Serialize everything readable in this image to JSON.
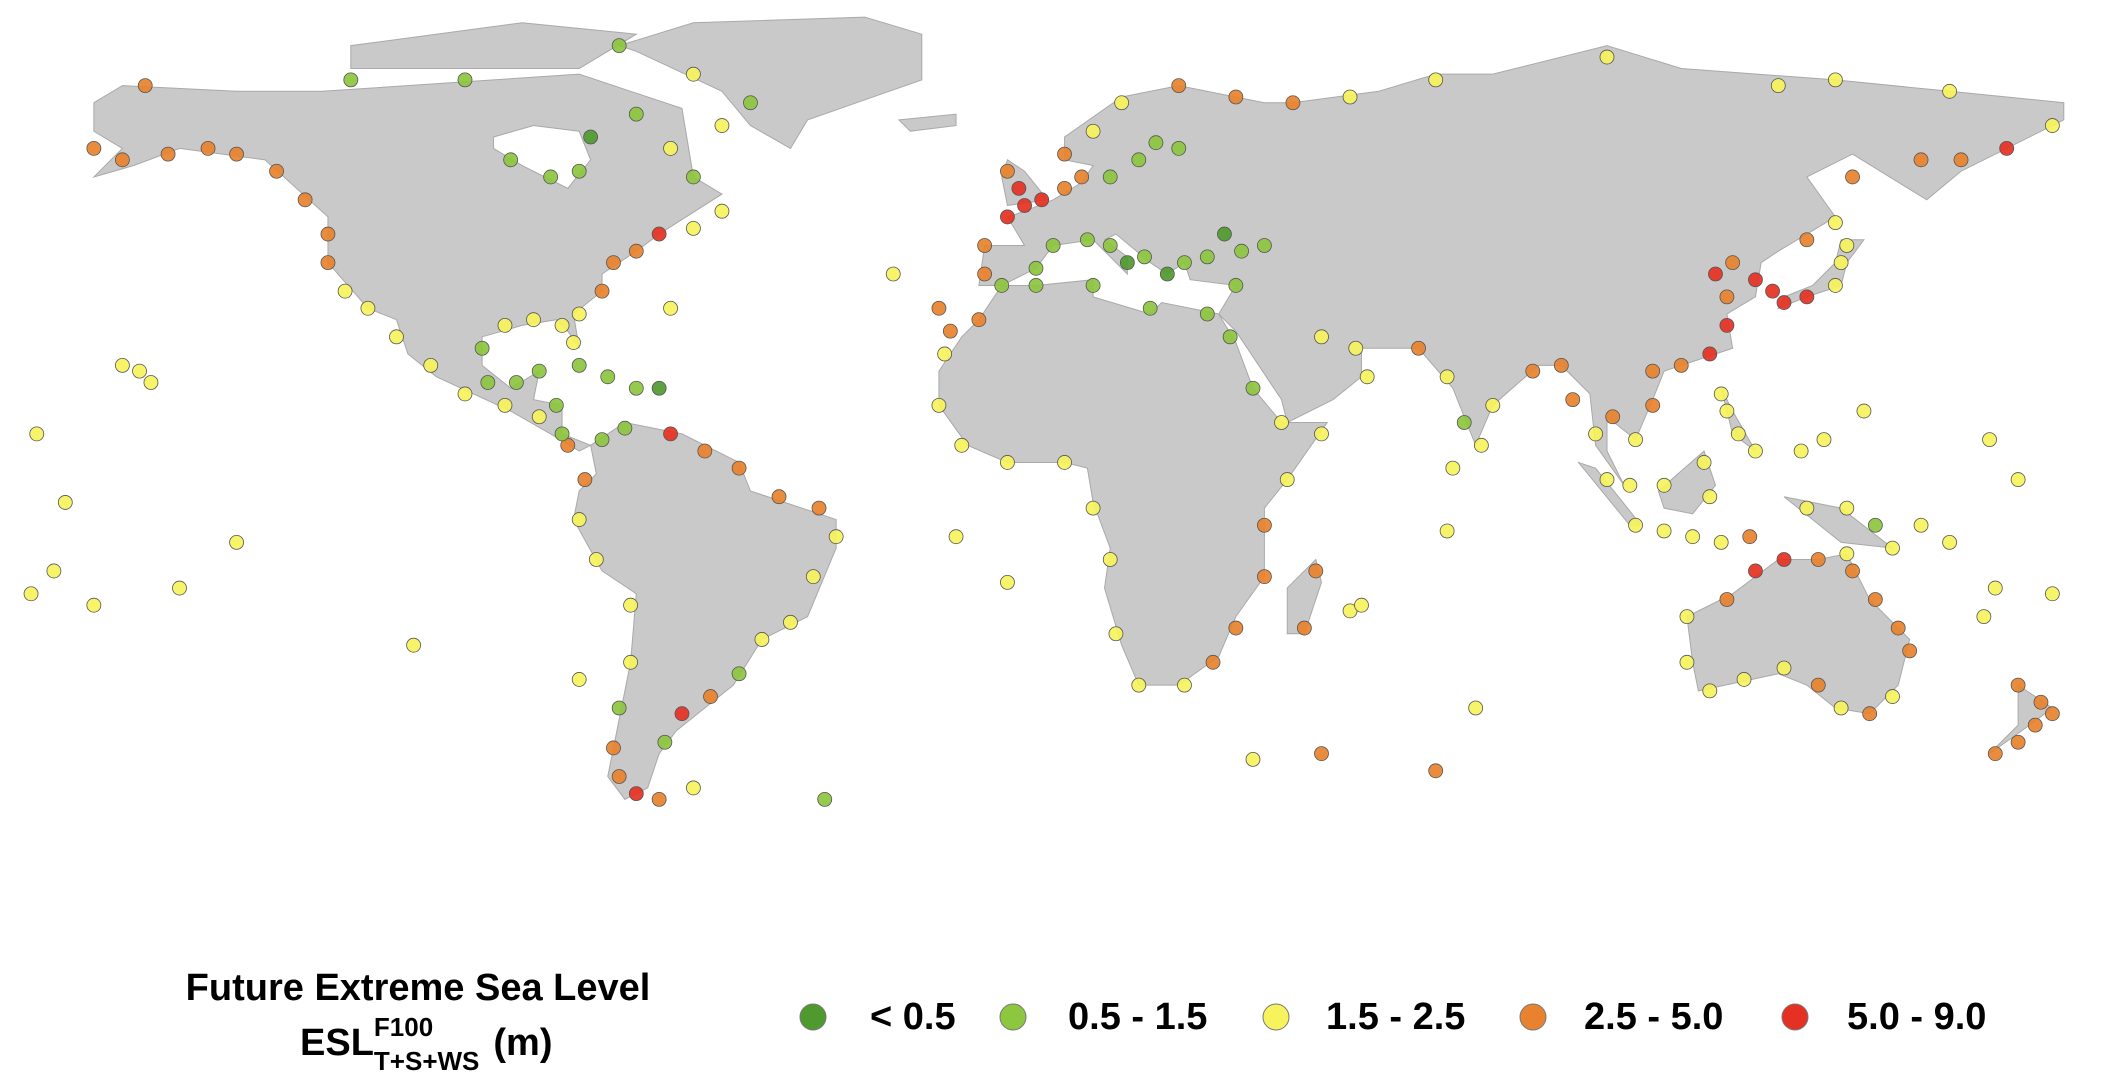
{
  "legend": {
    "title": "Future Extreme Sea Level",
    "esl": {
      "symbol": "ESL",
      "superscript": "F100",
      "subscript": "T+S+WS",
      "unit": "(m)"
    },
    "classes": [
      {
        "label": "< 0.5",
        "color": "#4f9a2e"
      },
      {
        "label": "0.5 - 1.5",
        "color": "#8dc63f"
      },
      {
        "label": "1.5 - 2.5",
        "color": "#f6f35c"
      },
      {
        "label": "2.5 - 5.0",
        "color": "#e8822e"
      },
      {
        "label": "5.0 - 9.0",
        "color": "#e53123"
      }
    ]
  },
  "points": [
    [
      -165,
      60,
      3
    ],
    [
      -160,
      58,
      3
    ],
    [
      -152,
      59,
      3
    ],
    [
      -145,
      60,
      3
    ],
    [
      -140,
      59,
      3
    ],
    [
      -133,
      56,
      3
    ],
    [
      -128,
      51,
      3
    ],
    [
      -124,
      45,
      3
    ],
    [
      -124,
      40,
      3
    ],
    [
      -121,
      35,
      2
    ],
    [
      -117,
      32,
      2
    ],
    [
      -112,
      27,
      2
    ],
    [
      -106,
      22,
      2
    ],
    [
      -100,
      17,
      2
    ],
    [
      -93,
      15,
      2
    ],
    [
      -87,
      13,
      2
    ],
    [
      -82,
      8,
      3
    ],
    [
      -79,
      2,
      3
    ],
    [
      -80,
      -5,
      2
    ],
    [
      -77,
      -12,
      2
    ],
    [
      -71,
      -20,
      2
    ],
    [
      -71,
      -30,
      2
    ],
    [
      -73,
      -38,
      1
    ],
    [
      -74,
      -45,
      3
    ],
    [
      -73,
      -50,
      3
    ],
    [
      -70,
      -53,
      4
    ],
    [
      -66,
      -54,
      3
    ],
    [
      -65,
      -44,
      1
    ],
    [
      -62,
      -39,
      4
    ],
    [
      -57,
      -36,
      3
    ],
    [
      -52,
      -32,
      1
    ],
    [
      -48,
      -26,
      2
    ],
    [
      -43,
      -23,
      2
    ],
    [
      -39,
      -15,
      2
    ],
    [
      -35,
      -8,
      2
    ],
    [
      -38,
      -3,
      3
    ],
    [
      -45,
      -1,
      3
    ],
    [
      -52,
      4,
      3
    ],
    [
      -58,
      7,
      3
    ],
    [
      -64,
      10,
      4
    ],
    [
      -72,
      11,
      1
    ],
    [
      -76,
      9,
      1
    ],
    [
      -83,
      10,
      1
    ],
    [
      -84,
      15,
      1
    ],
    [
      -87,
      21,
      1
    ],
    [
      -91,
      19,
      1
    ],
    [
      -96,
      19,
      1
    ],
    [
      -97,
      25,
      1
    ],
    [
      -93,
      29,
      2
    ],
    [
      -88,
      30,
      2
    ],
    [
      -83,
      29,
      2
    ],
    [
      -81,
      26,
      2
    ],
    [
      -80,
      31,
      2
    ],
    [
      -76,
      35,
      3
    ],
    [
      -74,
      40,
      3
    ],
    [
      -70,
      42,
      3
    ],
    [
      -66,
      45,
      4
    ],
    [
      -60,
      46,
      2
    ],
    [
      -55,
      49,
      2
    ],
    [
      -60,
      55,
      1
    ],
    [
      -64,
      60,
      2
    ],
    [
      -78,
      62,
      0
    ],
    [
      -80,
      56,
      1
    ],
    [
      -85,
      55,
      1
    ],
    [
      -92,
      58,
      1
    ],
    [
      -70,
      66,
      1
    ],
    [
      -55,
      64,
      2
    ],
    [
      -50,
      68,
      1
    ],
    [
      -60,
      73,
      2
    ],
    [
      -73,
      78,
      1
    ],
    [
      -120,
      72,
      1
    ],
    [
      -100,
      72,
      1
    ],
    [
      -156,
      71,
      3
    ],
    [
      -75,
      20,
      1
    ],
    [
      -70,
      18,
      1
    ],
    [
      -66,
      18,
      0
    ],
    [
      -80,
      22,
      1
    ],
    [
      -9,
      38,
      3
    ],
    [
      -9,
      43,
      3
    ],
    [
      -5,
      48,
      4
    ],
    [
      -2,
      50,
      4
    ],
    [
      1,
      51,
      4
    ],
    [
      -3,
      53,
      4
    ],
    [
      -5,
      56,
      3
    ],
    [
      5,
      53,
      3
    ],
    [
      8,
      55,
      3
    ],
    [
      5,
      59,
      3
    ],
    [
      10,
      63,
      2
    ],
    [
      15,
      68,
      2
    ],
    [
      25,
      71,
      3
    ],
    [
      35,
      69,
      3
    ],
    [
      45,
      68,
      3
    ],
    [
      55,
      69,
      2
    ],
    [
      70,
      72,
      2
    ],
    [
      13,
      55,
      1
    ],
    [
      18,
      58,
      1
    ],
    [
      21,
      61,
      1
    ],
    [
      25,
      60,
      1
    ],
    [
      -6,
      36,
      1
    ],
    [
      0,
      39,
      1
    ],
    [
      3,
      43,
      1
    ],
    [
      9,
      44,
      1
    ],
    [
      13,
      43,
      1
    ],
    [
      16,
      40,
      0
    ],
    [
      19,
      41,
      1
    ],
    [
      23,
      38,
      0
    ],
    [
      26,
      40,
      1
    ],
    [
      30,
      41,
      1
    ],
    [
      36,
      42,
      1
    ],
    [
      40,
      43,
      1
    ],
    [
      33,
      45,
      0
    ],
    [
      35,
      36,
      1
    ],
    [
      30,
      31,
      1
    ],
    [
      20,
      32,
      1
    ],
    [
      10,
      36,
      1
    ],
    [
      0,
      36,
      1
    ],
    [
      -10,
      30,
      3
    ],
    [
      -16,
      24,
      2
    ],
    [
      -17,
      15,
      2
    ],
    [
      -13,
      8,
      2
    ],
    [
      -5,
      5,
      2
    ],
    [
      5,
      5,
      2
    ],
    [
      10,
      -3,
      2
    ],
    [
      13,
      -12,
      2
    ],
    [
      14,
      -25,
      2
    ],
    [
      18,
      -34,
      2
    ],
    [
      26,
      -34,
      2
    ],
    [
      31,
      -30,
      3
    ],
    [
      35,
      -24,
      3
    ],
    [
      40,
      -15,
      3
    ],
    [
      40,
      -6,
      3
    ],
    [
      44,
      2,
      2
    ],
    [
      50,
      10,
      2
    ],
    [
      43,
      12,
      2
    ],
    [
      38,
      18,
      1
    ],
    [
      34,
      27,
      1
    ],
    [
      47,
      -24,
      3
    ],
    [
      49,
      -14,
      3
    ],
    [
      50,
      27,
      2
    ],
    [
      56,
      25,
      2
    ],
    [
      58,
      20,
      2
    ],
    [
      67,
      25,
      3
    ],
    [
      72,
      20,
      2
    ],
    [
      75,
      12,
      1
    ],
    [
      78,
      8,
      2
    ],
    [
      80,
      15,
      2
    ],
    [
      87,
      21,
      3
    ],
    [
      92,
      22,
      3
    ],
    [
      94,
      16,
      3
    ],
    [
      98,
      10,
      2
    ],
    [
      101,
      13,
      3
    ],
    [
      105,
      9,
      2
    ],
    [
      108,
      15,
      3
    ],
    [
      108,
      21,
      3
    ],
    [
      113,
      22,
      3
    ],
    [
      118,
      24,
      4
    ],
    [
      121,
      29,
      4
    ],
    [
      121,
      34,
      3
    ],
    [
      119,
      38,
      4
    ],
    [
      122,
      40,
      3
    ],
    [
      126,
      37,
      4
    ],
    [
      129,
      35,
      4
    ],
    [
      131,
      33,
      4
    ],
    [
      135,
      34,
      4
    ],
    [
      140,
      36,
      2
    ],
    [
      141,
      40,
      2
    ],
    [
      142,
      43,
      2
    ],
    [
      140,
      47,
      2
    ],
    [
      135,
      44,
      3
    ],
    [
      143,
      55,
      3
    ],
    [
      155,
      58,
      3
    ],
    [
      162,
      58,
      3
    ],
    [
      170,
      60,
      4
    ],
    [
      178,
      64,
      2
    ],
    [
      140,
      72,
      2
    ],
    [
      160,
      70,
      2
    ],
    [
      100,
      76,
      2
    ],
    [
      130,
      71,
      2
    ],
    [
      100,
      2,
      2
    ],
    [
      104,
      1,
      2
    ],
    [
      105,
      -6,
      2
    ],
    [
      110,
      -7,
      2
    ],
    [
      115,
      -8,
      2
    ],
    [
      120,
      -9,
      2
    ],
    [
      125,
      -8,
      3
    ],
    [
      110,
      1,
      2
    ],
    [
      117,
      5,
      2
    ],
    [
      118,
      -1,
      2
    ],
    [
      121,
      14,
      2
    ],
    [
      123,
      10,
      2
    ],
    [
      126,
      7,
      2
    ],
    [
      120,
      17,
      2
    ],
    [
      135,
      -3,
      2
    ],
    [
      142,
      -3,
      2
    ],
    [
      147,
      -6,
      1
    ],
    [
      150,
      -10,
      2
    ],
    [
      114,
      -22,
      2
    ],
    [
      114,
      -30,
      2
    ],
    [
      118,
      -35,
      2
    ],
    [
      124,
      -33,
      2
    ],
    [
      131,
      -31,
      2
    ],
    [
      137,
      -34,
      3
    ],
    [
      141,
      -38,
      2
    ],
    [
      146,
      -39,
      3
    ],
    [
      150,
      -36,
      2
    ],
    [
      153,
      -28,
      3
    ],
    [
      151,
      -24,
      3
    ],
    [
      147,
      -19,
      3
    ],
    [
      143,
      -14,
      3
    ],
    [
      142,
      -11,
      2
    ],
    [
      137,
      -12,
      3
    ],
    [
      131,
      -12,
      4
    ],
    [
      126,
      -14,
      4
    ],
    [
      121,
      -19,
      3
    ],
    [
      172,
      -34,
      3
    ],
    [
      176,
      -37,
      3
    ],
    [
      178,
      -39,
      3
    ],
    [
      175,
      -41,
      3
    ],
    [
      172,
      -44,
      3
    ],
    [
      168,
      -46,
      3
    ],
    [
      -157,
      21,
      2
    ],
    [
      -155,
      19,
      2
    ],
    [
      -160,
      22,
      2
    ],
    [
      -172,
      -14,
      2
    ],
    [
      -176,
      -18,
      2
    ],
    [
      -150,
      -17,
      2
    ],
    [
      -140,
      -9,
      2
    ],
    [
      -170,
      -2,
      2
    ],
    [
      -175,
      10,
      2
    ],
    [
      -165,
      -20,
      2
    ],
    [
      -109,
      -27,
      2
    ],
    [
      -80,
      -33,
      2
    ],
    [
      -60,
      -52,
      2
    ],
    [
      -37,
      -54,
      1
    ],
    [
      -14,
      -8,
      2
    ],
    [
      -5,
      -16,
      2
    ],
    [
      -15,
      28,
      3
    ],
    [
      -25,
      38,
      2
    ],
    [
      -17,
      32,
      3
    ],
    [
      -64,
      32,
      2
    ],
    [
      55,
      -21,
      2
    ],
    [
      57,
      -20,
      2
    ],
    [
      73,
      4,
      2
    ],
    [
      72,
      -7,
      2
    ],
    [
      166,
      -22,
      2
    ],
    [
      168,
      -17,
      2
    ],
    [
      178,
      -18,
      2
    ],
    [
      160,
      -9,
      2
    ],
    [
      155,
      -6,
      2
    ],
    [
      145,
      14,
      2
    ],
    [
      134,
      7,
      2
    ],
    [
      138,
      9,
      2
    ],
    [
      167,
      9,
      2
    ],
    [
      172,
      2,
      2
    ],
    [
      70,
      -49,
      3
    ],
    [
      50,
      -46,
      3
    ],
    [
      38,
      -47,
      2
    ],
    [
      77,
      -38,
      2
    ]
  ]
}
